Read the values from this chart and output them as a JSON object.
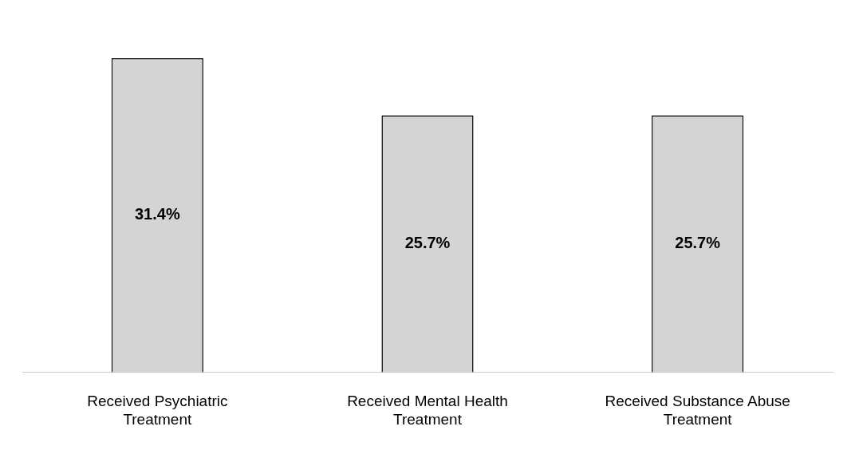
{
  "chart_data": {
    "type": "bar",
    "categories": [
      "Received Psychiatric Treatment",
      "Received Mental Health Treatment",
      "Received Substance Abuse Treatment"
    ],
    "values": [
      31.4,
      25.7,
      25.7
    ],
    "value_labels": [
      "31.4%",
      "25.7%",
      "25.7%"
    ],
    "color": "#d4d4d4",
    "grid": false,
    "legend": false
  }
}
